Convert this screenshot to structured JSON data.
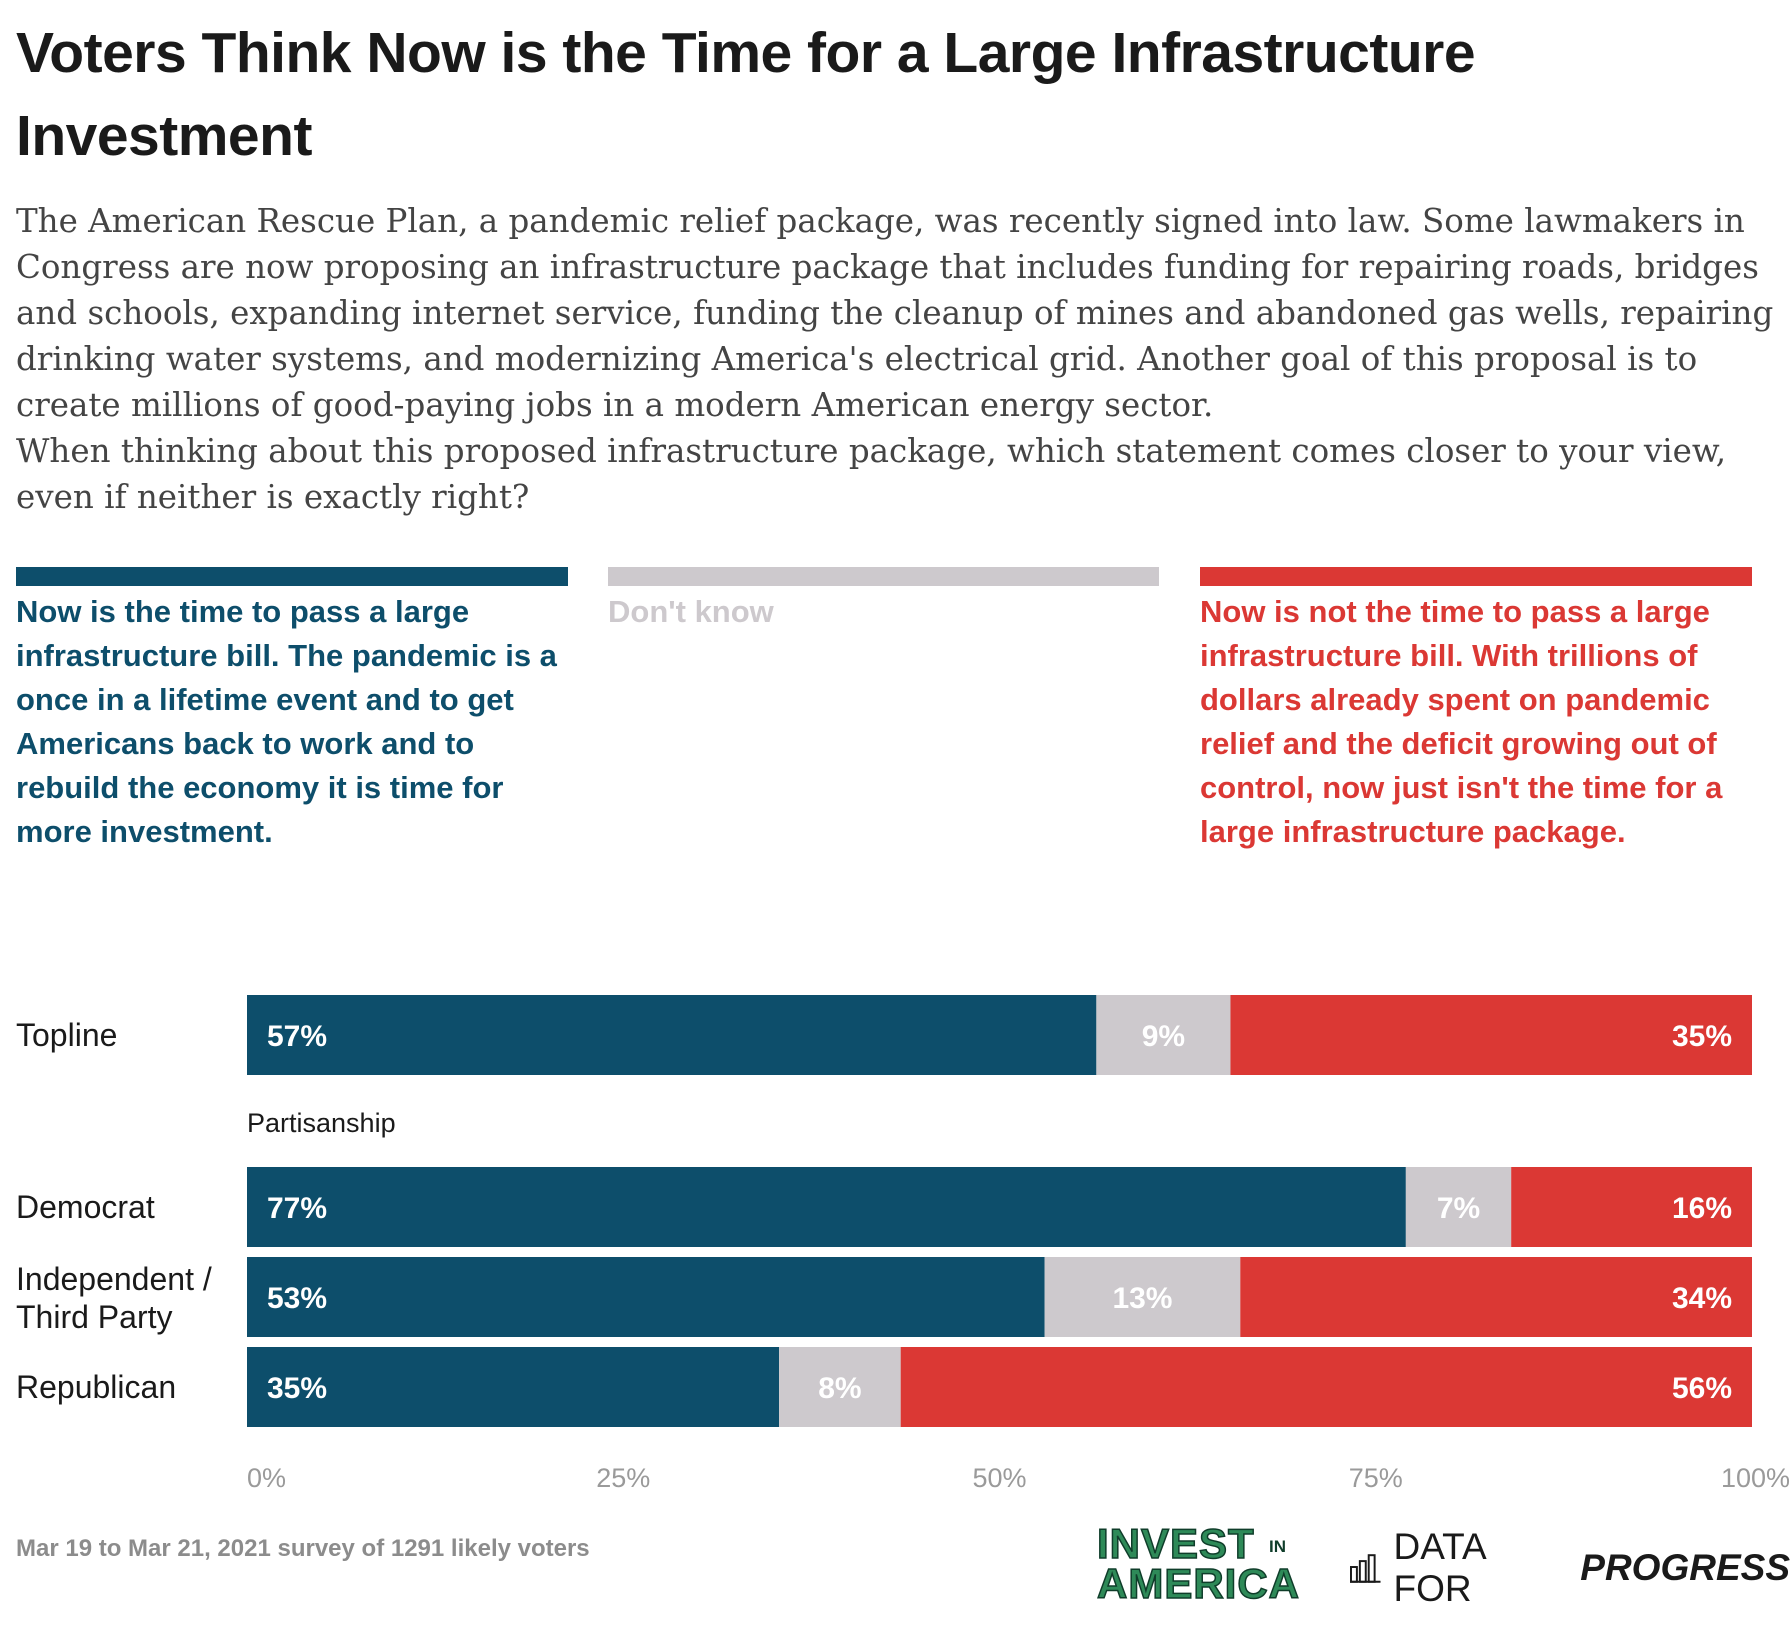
{
  "title": "Voters Think Now is the Time for a Large Infrastructure Investment",
  "subtitle": {
    "paragraph1": "The American Rescue Plan, a pandemic relief package, was recently signed into law. Some lawmakers in Congress are now proposing an infrastructure package that includes funding for repairing roads, bridges and schools, expanding internet service, funding the cleanup of mines and abandoned gas wells, repairing drinking water systems, and modernizing America's electrical grid. Another goal of this proposal is to create millions of good-paying jobs in a modern American energy sector.",
    "paragraph2": "When thinking about this proposed infrastructure package, which statement comes closer to your view, even if neither is exactly right?"
  },
  "colors": {
    "now": "#0d4e6b",
    "dont_know": "#cdc9cd",
    "not_now": "#db3834"
  },
  "legend": {
    "now": "Now is the time to pass a large infrastructure bill. The pandemic is a once in a lifetime event and to get Americans back to work and to rebuild the economy it is time for more investment.",
    "dont_know": "Don't know",
    "not_now": "Now is not the time to pass a large infrastructure bill. With trillions of dollars already spent on pandemic relief and the deficit growing out of control, now just isn't the time for a large infrastructure package."
  },
  "group_label": "Partisanship",
  "chart_data": {
    "type": "bar",
    "orientation": "horizontal",
    "stacked": true,
    "categories": [
      "Topline",
      "Democrat",
      "Independent / Third Party",
      "Republican"
    ],
    "series": [
      {
        "name": "Now is the time to pass a large infrastructure bill.",
        "values": [
          57,
          77,
          53,
          35
        ],
        "labels": [
          "57%",
          "77%",
          "53%",
          "35%"
        ]
      },
      {
        "name": "Don't know",
        "values": [
          9,
          7,
          13,
          8
        ],
        "labels": [
          "9%",
          "7%",
          "13%",
          "8%"
        ]
      },
      {
        "name": "Now is not the time to pass a large infrastructure bill.",
        "values": [
          35,
          16,
          34,
          56
        ],
        "labels": [
          "35%",
          "16%",
          "34%",
          "56%"
        ]
      }
    ],
    "xlim": [
      0,
      100
    ],
    "x_ticks": [
      "0%",
      "25%",
      "50%",
      "75%",
      "100%"
    ],
    "grid": false
  },
  "footnote": "Mar 19 to Mar 21, 2021 survey of 1291 likely voters",
  "logos": {
    "invest": {
      "line1": "INVEST",
      "in": "IN",
      "line2": "AMERICA"
    },
    "dfp": {
      "part1": "DATA FOR",
      "part2": "PROGRESS"
    }
  }
}
